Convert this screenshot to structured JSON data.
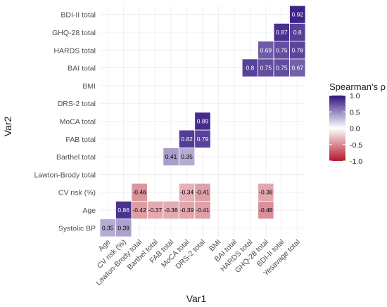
{
  "chart_data": {
    "type": "heatmap",
    "xlabel": "Var1",
    "ylabel": "Var2",
    "x_categories": [
      "Age",
      "CV risk (%)",
      "Lawton-Brody total",
      "Barthel total",
      "FAB total",
      "MoCA total",
      "DRS-2 total",
      "BMI",
      "BAI total",
      "HARDS total",
      "GHQ-28 total",
      "BDI-II total",
      "Yesavage total"
    ],
    "y_categories": [
      "BDI-II total",
      "GHQ-28 total",
      "HARDS total",
      "BAI total",
      "BMI",
      "DRS-2 total",
      "MoCA total",
      "FAB total",
      "Barthel total",
      "Lawton-Brody total",
      "CV risk (%)",
      "Age",
      "Systolic BP"
    ],
    "cells": [
      {
        "x": "Yesavage total",
        "y": "BDI-II total",
        "value": 0.92,
        "label": "0.92"
      },
      {
        "x": "BDI-II total",
        "y": "GHQ-28 total",
        "value": 0.87,
        "label": "0.87"
      },
      {
        "x": "Yesavage total",
        "y": "GHQ-28 total",
        "value": 0.8,
        "label": "0.8"
      },
      {
        "x": "GHQ-28 total",
        "y": "HARDS total",
        "value": 0.69,
        "label": "0.69"
      },
      {
        "x": "BDI-II total",
        "y": "HARDS total",
        "value": 0.75,
        "label": "0.75"
      },
      {
        "x": "Yesavage total",
        "y": "HARDS total",
        "value": 0.78,
        "label": "0.78"
      },
      {
        "x": "HARDS total",
        "y": "BAI total",
        "value": 0.8,
        "label": "0.8"
      },
      {
        "x": "GHQ-28 total",
        "y": "BAI total",
        "value": 0.75,
        "label": "0.75"
      },
      {
        "x": "BDI-II total",
        "y": "BAI total",
        "value": 0.75,
        "label": "0.75"
      },
      {
        "x": "Yesavage total",
        "y": "BAI total",
        "value": 0.67,
        "label": "0.67"
      },
      {
        "x": "DRS-2 total",
        "y": "MoCA total",
        "value": 0.89,
        "label": "0.89"
      },
      {
        "x": "MoCA total",
        "y": "FAB total",
        "value": 0.82,
        "label": "0.82"
      },
      {
        "x": "DRS-2 total",
        "y": "FAB total",
        "value": 0.79,
        "label": "0.79"
      },
      {
        "x": "FAB total",
        "y": "Barthel total",
        "value": 0.41,
        "label": "0.41"
      },
      {
        "x": "MoCA total",
        "y": "Barthel total",
        "value": 0.35,
        "label": "0.35"
      },
      {
        "x": "Lawton-Brody total",
        "y": "CV risk (%)",
        "value": -0.46,
        "label": "-0.46"
      },
      {
        "x": "MoCA total",
        "y": "CV risk (%)",
        "value": -0.34,
        "label": "-0.34"
      },
      {
        "x": "DRS-2 total",
        "y": "CV risk (%)",
        "value": -0.41,
        "label": "-0.41"
      },
      {
        "x": "GHQ-28 total",
        "y": "CV risk (%)",
        "value": -0.38,
        "label": "-0.38"
      },
      {
        "x": "CV risk (%)",
        "y": "Age",
        "value": 0.86,
        "label": "0.86"
      },
      {
        "x": "Lawton-Brody total",
        "y": "Age",
        "value": -0.42,
        "label": "-0.42"
      },
      {
        "x": "Barthel total",
        "y": "Age",
        "value": -0.37,
        "label": "-0.37"
      },
      {
        "x": "FAB total",
        "y": "Age",
        "value": -0.36,
        "label": "-0.36"
      },
      {
        "x": "MoCA total",
        "y": "Age",
        "value": -0.39,
        "label": "-0.39"
      },
      {
        "x": "DRS-2 total",
        "y": "Age",
        "value": -0.41,
        "label": "-0.41"
      },
      {
        "x": "GHQ-28 total",
        "y": "Age",
        "value": -0.48,
        "label": "-0.48"
      },
      {
        "x": "Age",
        "y": "Systolic BP",
        "value": 0.35,
        "label": "0.35"
      },
      {
        "x": "CV risk (%)",
        "y": "Systolic BP",
        "value": 0.39,
        "label": "0.39"
      }
    ],
    "color_scale": {
      "low": "#b2182b",
      "mid": "#ffffff",
      "high": "#2d117f",
      "limits": [
        -1.0,
        1.0
      ]
    },
    "legend": {
      "title": "Spearman's ρ",
      "placement": "right",
      "ticks": [
        "1.0",
        "0.5",
        "0.0",
        "-0.5",
        "-1.0"
      ]
    },
    "grid": true,
    "background": "#ffffff",
    "gridline_color": "#ebebeb"
  }
}
